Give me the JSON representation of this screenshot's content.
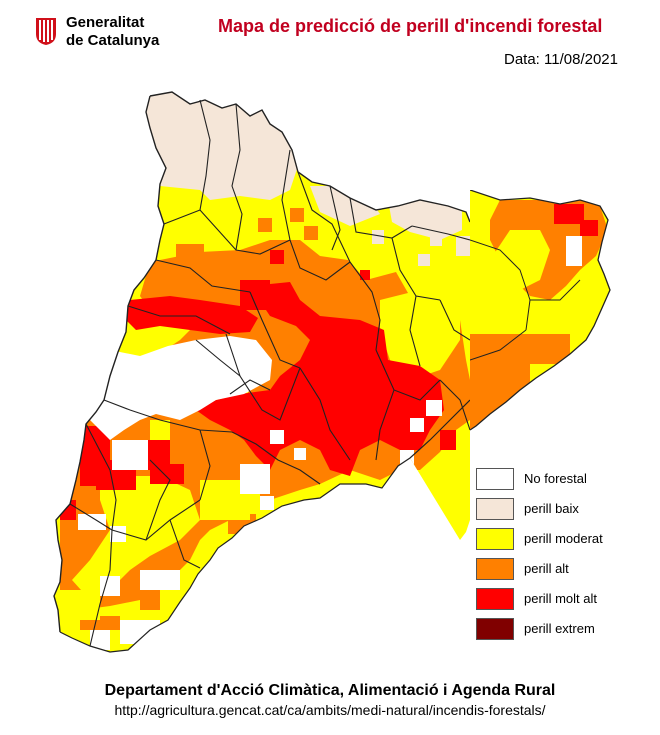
{
  "header": {
    "logo_line1": "Generalitat",
    "logo_line2": "de Catalunya",
    "title": "Mapa de predicció de perill d'incendi forestal",
    "date_label": "Data:",
    "date_value": "11/08/2021"
  },
  "legend": {
    "items": [
      {
        "label": "No forestal",
        "color": "#ffffff"
      },
      {
        "label": "perill baix",
        "color": "#f5e6d8"
      },
      {
        "label": "perill moderat",
        "color": "#ffff00"
      },
      {
        "label": "perill alt",
        "color": "#ff8000"
      },
      {
        "label": "perill molt alt",
        "color": "#ff0000"
      },
      {
        "label": "perill extrem",
        "color": "#800000"
      }
    ]
  },
  "footer": {
    "department": "Departament d'Acció Climàtica, Alimentació i Agenda Rural",
    "url": "http://agricultura.gencat.cat/ca/ambits/medi-natural/incendis-forestals/"
  },
  "colors": {
    "title": "#c1001f",
    "logo": "#d0101a",
    "border": "#222222"
  }
}
